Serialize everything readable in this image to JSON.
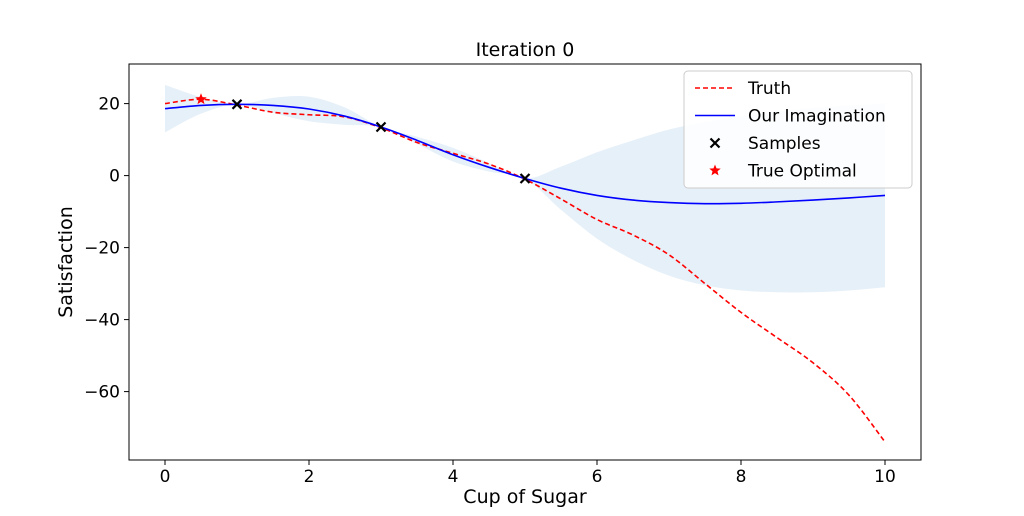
{
  "chart_data": {
    "type": "line",
    "title": "Iteration 0",
    "xlabel": "Cup of Sugar",
    "ylabel": "Satisfaction",
    "xlim": [
      -0.5,
      10.5
    ],
    "ylim": [
      -79,
      31
    ],
    "xticks": [
      0,
      2,
      4,
      6,
      8,
      10
    ],
    "yticks": [
      20,
      0,
      -20,
      -40,
      -60
    ],
    "grid": false,
    "legend_position": "top-right",
    "series": [
      {
        "name": "Truth",
        "style": "dashed",
        "color": "#ff0000",
        "x": [
          0,
          0.5,
          1,
          1.5,
          2,
          2.5,
          3,
          3.5,
          4,
          4.5,
          5,
          5.5,
          6,
          6.5,
          7,
          7.5,
          8,
          8.5,
          9,
          9.5,
          10
        ],
        "y": [
          20,
          21.2,
          19.6,
          17.6,
          16.9,
          16.3,
          13.3,
          9.2,
          6.2,
          3.2,
          -1,
          -6.5,
          -12.2,
          -16.5,
          -22,
          -30,
          -38,
          -45,
          -52,
          -61,
          -74
        ]
      },
      {
        "name": "Our Imagination",
        "style": "solid",
        "color": "#0000ff",
        "x": [
          0,
          0.5,
          1,
          1.5,
          2,
          2.5,
          3,
          3.5,
          4,
          4.5,
          5,
          5.5,
          6,
          6.5,
          7,
          7.5,
          8,
          8.5,
          9,
          9.5,
          10
        ],
        "y": [
          18.6,
          19.5,
          19.8,
          19.5,
          18.5,
          16.5,
          13.5,
          9.8,
          5.8,
          2.3,
          -0.8,
          -3.5,
          -5.5,
          -6.8,
          -7.5,
          -7.8,
          -7.7,
          -7.3,
          -6.8,
          -6.2,
          -5.5
        ]
      },
      {
        "name": "Uncertainty",
        "style": "band",
        "color": "#d6e6f5",
        "x": [
          0,
          0.5,
          1,
          1.5,
          2,
          2.5,
          3,
          3.5,
          4,
          4.5,
          5,
          5.5,
          6,
          6.5,
          7,
          7.5,
          8,
          8.5,
          9,
          9.5,
          10
        ],
        "upper": [
          25.2,
          21.8,
          19.8,
          21.6,
          21.9,
          18.9,
          13.5,
          10.8,
          7.7,
          3.5,
          -0.8,
          2.5,
          6.5,
          9.8,
          12.8,
          14.9,
          16.5,
          17.8,
          18.8,
          19.5,
          20
        ],
        "lower": [
          12,
          17.2,
          19.8,
          17.4,
          15.1,
          14.1,
          13.5,
          8.8,
          3.9,
          1.1,
          -0.8,
          -9.5,
          -17.5,
          -23.4,
          -27.8,
          -30.5,
          -31.9,
          -32.4,
          -32.4,
          -31.9,
          -31
        ]
      },
      {
        "name": "Samples",
        "style": "marker-x",
        "color": "#000000",
        "x": [
          1,
          3,
          5
        ],
        "y": [
          19.8,
          13.5,
          -0.8
        ]
      },
      {
        "name": "True Optimal",
        "style": "marker-star",
        "color": "#ff0000",
        "x": [
          0.5
        ],
        "y": [
          21.2
        ]
      }
    ],
    "legend": [
      "Truth",
      "Our Imagination",
      "Samples",
      "True Optimal"
    ]
  }
}
